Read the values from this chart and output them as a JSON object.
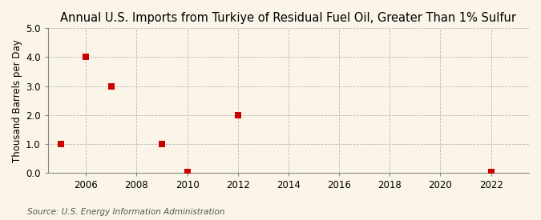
{
  "title": "Annual U.S. Imports from Turkiye of Residual Fuel Oil, Greater Than 1% Sulfur",
  "ylabel": "Thousand Barrels per Day",
  "source": "Source: U.S. Energy Information Administration",
  "background_color": "#faf5e8",
  "data_points": [
    {
      "year": 2005,
      "value": 1.0
    },
    {
      "year": 2006,
      "value": 4.0
    },
    {
      "year": 2007,
      "value": 3.0
    },
    {
      "year": 2009,
      "value": 1.0
    },
    {
      "year": 2010,
      "value": 0.02
    },
    {
      "year": 2012,
      "value": 2.0
    },
    {
      "year": 2022,
      "value": 0.02
    }
  ],
  "marker_color": "#cc0000",
  "marker_size": 36,
  "xlim": [
    2004.5,
    2023.5
  ],
  "ylim": [
    0.0,
    5.0
  ],
  "yticks": [
    0.0,
    1.0,
    2.0,
    3.0,
    4.0,
    5.0
  ],
  "xticks": [
    2006,
    2008,
    2010,
    2012,
    2014,
    2016,
    2018,
    2020,
    2022
  ],
  "grid_color": "#aaaaaa",
  "title_fontsize": 10.5,
  "axis_label_fontsize": 8.5,
  "tick_fontsize": 8.5,
  "source_fontsize": 7.5
}
